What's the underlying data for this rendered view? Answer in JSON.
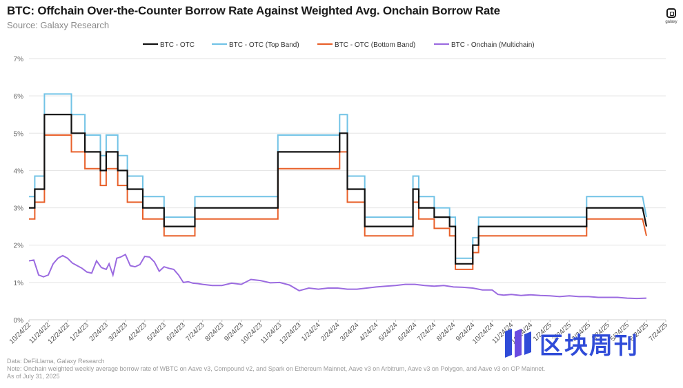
{
  "header": {
    "title": "BTC: Offchain Over-the-Counter Borrow Rate Against Weighted Avg. Onchain Borrow Rate",
    "subtitle": "Source: Galaxy Research",
    "logo_text": "galaxy"
  },
  "footer": {
    "data_source": "Data: DeFiLlama, Galaxy Research",
    "note": "Note: Onchain weighted weekly average borrow rate of WBTC on Aave v3, Compound v2, and Spark on Ethereum Mainnet, Aave v3 on Arbitrum, Aave v3 on Polygon, and Aave v3 on OP Mainnet.",
    "as_of": "As of July 31, 2025"
  },
  "watermark": {
    "text": "区块周刊",
    "icon": "blockweekly-logo-icon"
  },
  "colors": {
    "otc": "#111111",
    "otc_top": "#72c3e6",
    "otc_bottom": "#e8602a",
    "onchain": "#9b6be0",
    "grid": "#e3e3e3",
    "watermark": "#2f4bd8"
  },
  "chart_data": {
    "type": "line",
    "title": "BTC: Offchain Over-the-Counter Borrow Rate Against Weighted Avg. Onchain Borrow Rate",
    "xlabel": "",
    "ylabel": "",
    "x_ticks": [
      "10/24/22",
      "11/24/22",
      "12/24/22",
      "1/24/23",
      "2/24/23",
      "3/24/23",
      "4/24/23",
      "5/24/23",
      "6/24/23",
      "7/24/23",
      "8/24/23",
      "9/24/23",
      "10/24/23",
      "11/24/23",
      "12/24/23",
      "1/24/24",
      "2/24/24",
      "3/24/24",
      "4/24/24",
      "5/24/24",
      "6/24/24",
      "7/24/24",
      "8/24/24",
      "9/24/24",
      "10/24/24",
      "11/24/24",
      "12/24/24",
      "1/24/25",
      "2/24/25",
      "3/24/25",
      "4/24/25",
      "5/24/25",
      "6/24/25",
      "7/24/25"
    ],
    "y_ticks": [
      "0%",
      "1%",
      "2%",
      "3%",
      "4%",
      "5%",
      "6%",
      "7%"
    ],
    "ylim": [
      0,
      7
    ],
    "xlim": [
      0,
      33
    ],
    "grid": "horizontal",
    "legend_position": "top",
    "series": [
      {
        "name": "BTC - OTC",
        "color_key": "otc",
        "points": [
          [
            0,
            3.0
          ],
          [
            0.3,
            3.0
          ],
          [
            0.3,
            3.5
          ],
          [
            0.8,
            3.5
          ],
          [
            0.8,
            5.5
          ],
          [
            2.2,
            5.5
          ],
          [
            2.2,
            5.0
          ],
          [
            2.9,
            5.0
          ],
          [
            2.9,
            4.5
          ],
          [
            3.7,
            4.5
          ],
          [
            3.7,
            4.0
          ],
          [
            4.0,
            4.0
          ],
          [
            4.0,
            4.5
          ],
          [
            4.6,
            4.5
          ],
          [
            4.6,
            4.0
          ],
          [
            5.1,
            4.0
          ],
          [
            5.1,
            3.5
          ],
          [
            5.9,
            3.5
          ],
          [
            5.9,
            3.0
          ],
          [
            7.0,
            3.0
          ],
          [
            7.0,
            2.5
          ],
          [
            8.6,
            2.5
          ],
          [
            8.6,
            3.0
          ],
          [
            12.9,
            3.0
          ],
          [
            12.9,
            4.5
          ],
          [
            16.1,
            4.5
          ],
          [
            16.1,
            5.0
          ],
          [
            16.5,
            5.0
          ],
          [
            16.5,
            3.5
          ],
          [
            17.4,
            3.5
          ],
          [
            17.4,
            2.5
          ],
          [
            19.9,
            2.5
          ],
          [
            19.9,
            3.5
          ],
          [
            20.2,
            3.5
          ],
          [
            20.2,
            3.0
          ],
          [
            21.0,
            3.0
          ],
          [
            21.0,
            2.75
          ],
          [
            21.8,
            2.75
          ],
          [
            21.8,
            2.5
          ],
          [
            22.1,
            2.5
          ],
          [
            22.1,
            1.5
          ],
          [
            23.0,
            1.5
          ],
          [
            23.0,
            2.0
          ],
          [
            23.3,
            2.0
          ],
          [
            23.3,
            2.5
          ],
          [
            28.9,
            2.5
          ],
          [
            28.9,
            3.0
          ],
          [
            31.8,
            3.0
          ],
          [
            32.0,
            2.5
          ]
        ]
      },
      {
        "name": "BTC - OTC (Top Band)",
        "color_key": "otc_top",
        "points": [
          [
            0,
            3.3
          ],
          [
            0.3,
            3.3
          ],
          [
            0.3,
            3.85
          ],
          [
            0.8,
            3.85
          ],
          [
            0.8,
            6.05
          ],
          [
            2.2,
            6.05
          ],
          [
            2.2,
            5.5
          ],
          [
            2.9,
            5.5
          ],
          [
            2.9,
            4.95
          ],
          [
            3.7,
            4.95
          ],
          [
            3.7,
            4.4
          ],
          [
            4.0,
            4.4
          ],
          [
            4.0,
            4.95
          ],
          [
            4.6,
            4.95
          ],
          [
            4.6,
            4.4
          ],
          [
            5.1,
            4.4
          ],
          [
            5.1,
            3.85
          ],
          [
            5.9,
            3.85
          ],
          [
            5.9,
            3.3
          ],
          [
            7.0,
            3.3
          ],
          [
            7.0,
            2.75
          ],
          [
            8.6,
            2.75
          ],
          [
            8.6,
            3.3
          ],
          [
            12.9,
            3.3
          ],
          [
            12.9,
            4.95
          ],
          [
            16.1,
            4.95
          ],
          [
            16.1,
            5.5
          ],
          [
            16.5,
            5.5
          ],
          [
            16.5,
            3.85
          ],
          [
            17.4,
            3.85
          ],
          [
            17.4,
            2.75
          ],
          [
            19.9,
            2.75
          ],
          [
            19.9,
            3.85
          ],
          [
            20.2,
            3.85
          ],
          [
            20.2,
            3.3
          ],
          [
            21.0,
            3.3
          ],
          [
            21.0,
            3.0
          ],
          [
            21.8,
            3.0
          ],
          [
            21.8,
            2.75
          ],
          [
            22.1,
            2.75
          ],
          [
            22.1,
            1.65
          ],
          [
            23.0,
            1.65
          ],
          [
            23.0,
            2.2
          ],
          [
            23.3,
            2.2
          ],
          [
            23.3,
            2.75
          ],
          [
            28.9,
            2.75
          ],
          [
            28.9,
            3.3
          ],
          [
            31.8,
            3.3
          ],
          [
            32.0,
            2.75
          ]
        ]
      },
      {
        "name": "BTC - OTC (Bottom Band)",
        "color_key": "otc_bottom",
        "points": [
          [
            0,
            2.7
          ],
          [
            0.3,
            2.7
          ],
          [
            0.3,
            3.15
          ],
          [
            0.8,
            3.15
          ],
          [
            0.8,
            4.95
          ],
          [
            2.2,
            4.95
          ],
          [
            2.2,
            4.5
          ],
          [
            2.9,
            4.5
          ],
          [
            2.9,
            4.05
          ],
          [
            3.7,
            4.05
          ],
          [
            3.7,
            3.6
          ],
          [
            4.0,
            3.6
          ],
          [
            4.0,
            4.05
          ],
          [
            4.6,
            4.05
          ],
          [
            4.6,
            3.6
          ],
          [
            5.1,
            3.6
          ],
          [
            5.1,
            3.15
          ],
          [
            5.9,
            3.15
          ],
          [
            5.9,
            2.7
          ],
          [
            7.0,
            2.7
          ],
          [
            7.0,
            2.25
          ],
          [
            8.6,
            2.25
          ],
          [
            8.6,
            2.7
          ],
          [
            12.9,
            2.7
          ],
          [
            12.9,
            4.05
          ],
          [
            16.1,
            4.05
          ],
          [
            16.1,
            4.5
          ],
          [
            16.5,
            4.5
          ],
          [
            16.5,
            3.15
          ],
          [
            17.4,
            3.15
          ],
          [
            17.4,
            2.25
          ],
          [
            19.9,
            2.25
          ],
          [
            19.9,
            3.15
          ],
          [
            20.2,
            3.15
          ],
          [
            20.2,
            2.7
          ],
          [
            21.0,
            2.7
          ],
          [
            21.0,
            2.45
          ],
          [
            21.8,
            2.45
          ],
          [
            21.8,
            2.25
          ],
          [
            22.1,
            2.25
          ],
          [
            22.1,
            1.35
          ],
          [
            23.0,
            1.35
          ],
          [
            23.0,
            1.8
          ],
          [
            23.3,
            1.8
          ],
          [
            23.3,
            2.25
          ],
          [
            28.9,
            2.25
          ],
          [
            28.9,
            2.7
          ],
          [
            31.8,
            2.7
          ],
          [
            32.0,
            2.25
          ]
        ]
      },
      {
        "name": "BTC - Onchain (Multichain)",
        "color_key": "onchain",
        "points": [
          [
            0,
            1.58
          ],
          [
            0.25,
            1.6
          ],
          [
            0.5,
            1.2
          ],
          [
            0.75,
            1.15
          ],
          [
            1.0,
            1.2
          ],
          [
            1.25,
            1.5
          ],
          [
            1.5,
            1.65
          ],
          [
            1.75,
            1.72
          ],
          [
            2.0,
            1.65
          ],
          [
            2.25,
            1.52
          ],
          [
            2.5,
            1.45
          ],
          [
            2.75,
            1.38
          ],
          [
            3.0,
            1.28
          ],
          [
            3.25,
            1.25
          ],
          [
            3.5,
            1.58
          ],
          [
            3.75,
            1.4
          ],
          [
            4.0,
            1.35
          ],
          [
            4.15,
            1.5
          ],
          [
            4.35,
            1.2
          ],
          [
            4.55,
            1.65
          ],
          [
            4.75,
            1.68
          ],
          [
            5.0,
            1.75
          ],
          [
            5.25,
            1.45
          ],
          [
            5.5,
            1.42
          ],
          [
            5.75,
            1.48
          ],
          [
            6.0,
            1.7
          ],
          [
            6.25,
            1.68
          ],
          [
            6.5,
            1.55
          ],
          [
            6.75,
            1.3
          ],
          [
            7.0,
            1.42
          ],
          [
            7.25,
            1.38
          ],
          [
            7.5,
            1.35
          ],
          [
            7.75,
            1.2
          ],
          [
            8.0,
            1.0
          ],
          [
            8.25,
            1.02
          ],
          [
            8.5,
            0.98
          ],
          [
            8.75,
            0.97
          ],
          [
            9.0,
            0.95
          ],
          [
            9.5,
            0.92
          ],
          [
            10.0,
            0.92
          ],
          [
            10.5,
            0.98
          ],
          [
            11.0,
            0.95
          ],
          [
            11.5,
            1.08
          ],
          [
            12.0,
            1.05
          ],
          [
            12.5,
            0.99
          ],
          [
            13.0,
            1.0
          ],
          [
            13.5,
            0.93
          ],
          [
            14.0,
            0.78
          ],
          [
            14.5,
            0.85
          ],
          [
            15.0,
            0.82
          ],
          [
            15.5,
            0.85
          ],
          [
            16.0,
            0.85
          ],
          [
            16.5,
            0.82
          ],
          [
            17.0,
            0.82
          ],
          [
            17.5,
            0.85
          ],
          [
            18.0,
            0.88
          ],
          [
            18.5,
            0.9
          ],
          [
            19.0,
            0.92
          ],
          [
            19.5,
            0.95
          ],
          [
            20.0,
            0.95
          ],
          [
            20.5,
            0.92
          ],
          [
            21.0,
            0.9
          ],
          [
            21.5,
            0.92
          ],
          [
            22.0,
            0.88
          ],
          [
            22.5,
            0.87
          ],
          [
            23.0,
            0.85
          ],
          [
            23.5,
            0.8
          ],
          [
            24.0,
            0.8
          ],
          [
            24.3,
            0.68
          ],
          [
            24.6,
            0.66
          ],
          [
            25.0,
            0.68
          ],
          [
            25.5,
            0.65
          ],
          [
            26.0,
            0.67
          ],
          [
            26.5,
            0.65
          ],
          [
            27.0,
            0.64
          ],
          [
            27.5,
            0.62
          ],
          [
            28.0,
            0.64
          ],
          [
            28.5,
            0.62
          ],
          [
            29.0,
            0.62
          ],
          [
            29.5,
            0.6
          ],
          [
            30.0,
            0.6
          ],
          [
            30.5,
            0.6
          ],
          [
            31.0,
            0.58
          ],
          [
            31.5,
            0.57
          ],
          [
            32.0,
            0.58
          ]
        ]
      }
    ]
  }
}
